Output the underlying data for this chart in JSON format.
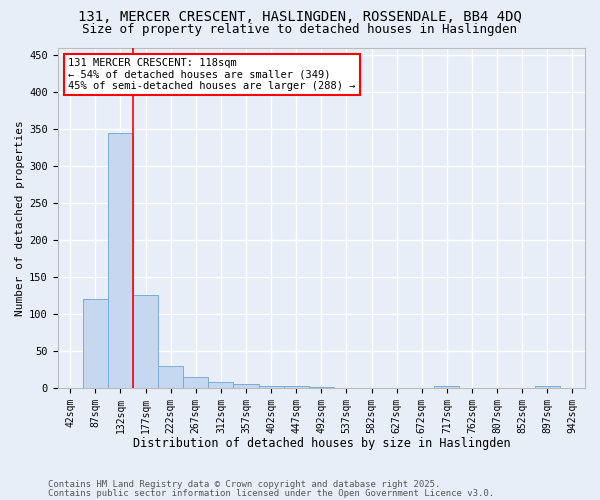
{
  "title1": "131, MERCER CRESCENT, HASLINGDEN, ROSSENDALE, BB4 4DQ",
  "title2": "Size of property relative to detached houses in Haslingden",
  "xlabel": "Distribution of detached houses by size in Haslingden",
  "ylabel": "Number of detached properties",
  "categories": [
    "42sqm",
    "87sqm",
    "132sqm",
    "177sqm",
    "222sqm",
    "267sqm",
    "312sqm",
    "357sqm",
    "402sqm",
    "447sqm",
    "492sqm",
    "537sqm",
    "582sqm",
    "627sqm",
    "672sqm",
    "717sqm",
    "762sqm",
    "807sqm",
    "852sqm",
    "897sqm",
    "942sqm"
  ],
  "values": [
    0,
    120,
    345,
    125,
    30,
    15,
    8,
    5,
    2,
    2,
    1,
    0,
    0,
    0,
    0,
    3,
    0,
    0,
    0,
    3,
    0
  ],
  "bar_color": "#c5d8f0",
  "bar_edge_color": "#7aadd4",
  "vline_color": "red",
  "vline_index": 2,
  "annotation_text": "131 MERCER CRESCENT: 118sqm\n← 54% of detached houses are smaller (349)\n45% of semi-detached houses are larger (288) →",
  "annotation_box_color": "white",
  "annotation_box_edge_color": "red",
  "ylim": [
    0,
    460
  ],
  "yticks": [
    0,
    50,
    100,
    150,
    200,
    250,
    300,
    350,
    400,
    450
  ],
  "bg_color": "#e8eef8",
  "grid_color": "white",
  "footer1": "Contains HM Land Registry data © Crown copyright and database right 2025.",
  "footer2": "Contains public sector information licensed under the Open Government Licence v3.0.",
  "title1_fontsize": 10,
  "title2_fontsize": 9,
  "xlabel_fontsize": 8.5,
  "ylabel_fontsize": 8,
  "tick_fontsize": 7,
  "annot_fontsize": 7.5,
  "footer_fontsize": 6.5
}
